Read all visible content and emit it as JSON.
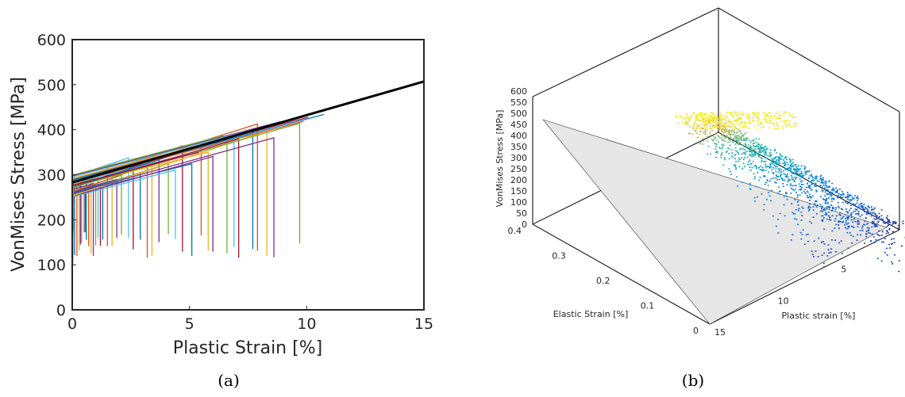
{
  "chart_data": [
    {
      "id": "a",
      "type": "line",
      "caption": "(a)",
      "xlabel": "Plastic Strain [%]",
      "ylabel": "VonMises Stress [MPa]",
      "xlim": [
        0,
        15
      ],
      "ylim": [
        0,
        600
      ],
      "xticks": [
        0,
        5,
        10,
        15
      ],
      "yticks": [
        0,
        100,
        200,
        300,
        400,
        500,
        600
      ],
      "grid": false,
      "legend": "none",
      "reference_line": {
        "x": [
          0,
          15
        ],
        "y": [
          283,
          507
        ],
        "color": "#000000"
      },
      "series_note": "many stress-strain curves, each: elastic drop from ~0 strain, hardening line, then vertical drop at failure strain",
      "colors": [
        "#0072BD",
        "#D95319",
        "#EDB120",
        "#7E2F8E",
        "#77AC30",
        "#4DBEEE",
        "#A2142F"
      ],
      "failure_strains": [
        0.1,
        0.2,
        0.3,
        0.35,
        0.4,
        0.5,
        0.55,
        0.6,
        0.7,
        0.8,
        0.9,
        1.0,
        1.1,
        1.2,
        1.3,
        1.5,
        1.7,
        1.9,
        2.1,
        2.4,
        2.6,
        2.9,
        3.2,
        3.4,
        3.7,
        4.1,
        4.4,
        4.7,
        5.1,
        5.5,
        5.8,
        6.0,
        6.6,
        6.9,
        7.1,
        7.7,
        7.9,
        8.3,
        8.6,
        9.7
      ]
    },
    {
      "id": "b",
      "type": "scatter",
      "caption": "(b)",
      "xlabel": "Plastic strain [%]",
      "ylabel": "Elastic Strain [%]",
      "zlabel": "VonMises Stress [MPa]",
      "xlim": [
        0,
        15
      ],
      "ylim": [
        0,
        0.4
      ],
      "zlim": [
        0,
        600
      ],
      "xticks": [
        0,
        5,
        10,
        15
      ],
      "yticks": [
        0,
        0.1,
        0.2,
        0.3,
        0.4
      ],
      "zticks": [
        0,
        50,
        100,
        150,
        200,
        250,
        300,
        350,
        400,
        450,
        500,
        550,
        600
      ],
      "colormap": "parula",
      "plane_color": "#e6e6e6"
    }
  ]
}
